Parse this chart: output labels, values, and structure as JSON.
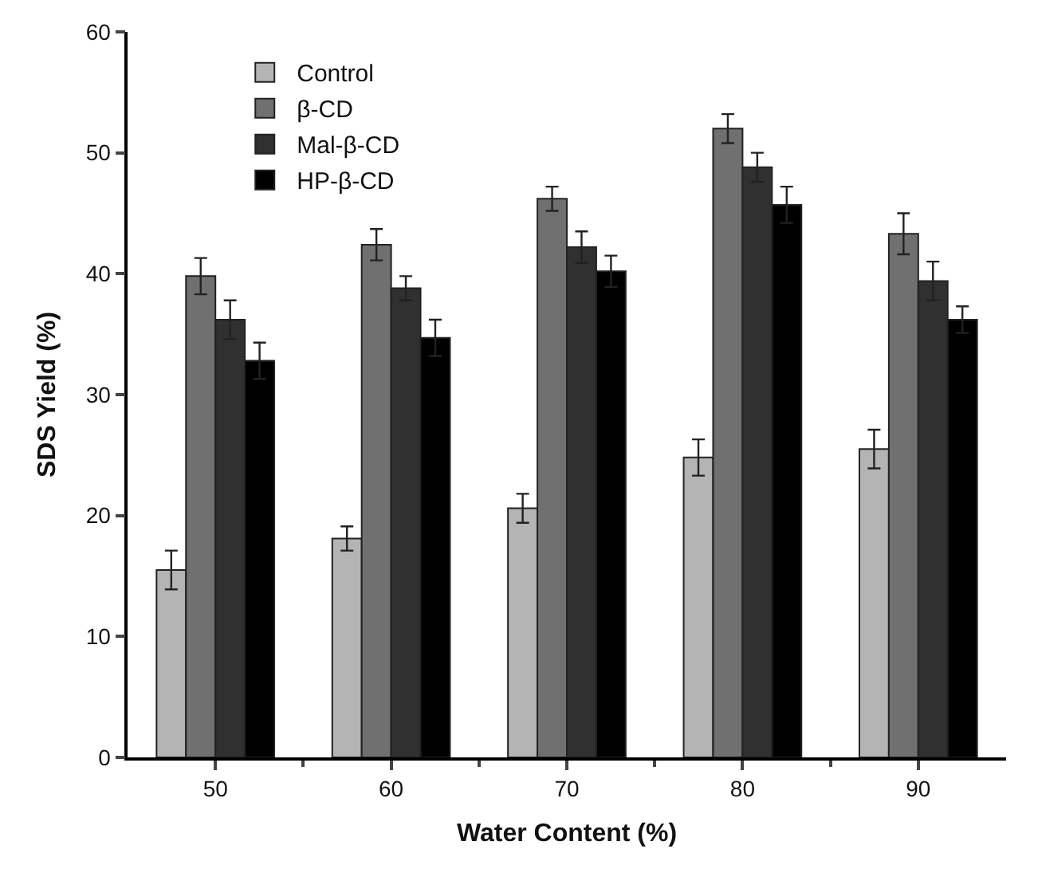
{
  "chart_data": {
    "type": "bar",
    "xlabel": "Water Content (%)",
    "ylabel": "SDS Yield (%)",
    "categories": [
      "50",
      "60",
      "70",
      "80",
      "90"
    ],
    "series": [
      {
        "name": "Control",
        "color": "#b4b4b4",
        "values": [
          15.5,
          18.1,
          20.6,
          24.8,
          25.5
        ],
        "errors": [
          1.6,
          1.0,
          1.2,
          1.5,
          1.6
        ]
      },
      {
        "name": "β-CD",
        "color": "#707070",
        "values": [
          39.8,
          42.4,
          46.2,
          52.0,
          43.3
        ],
        "errors": [
          1.5,
          1.3,
          1.0,
          1.2,
          1.7
        ]
      },
      {
        "name": "Mal-β-CD",
        "color": "#303030",
        "values": [
          36.2,
          38.8,
          42.2,
          48.8,
          39.4
        ],
        "errors": [
          1.6,
          1.0,
          1.3,
          1.2,
          1.6
        ]
      },
      {
        "name": "HP-β-CD",
        "color": "#000000",
        "values": [
          32.8,
          34.7,
          40.2,
          45.7,
          36.2
        ],
        "errors": [
          1.5,
          1.5,
          1.3,
          1.5,
          1.1
        ]
      }
    ],
    "ylim": [
      0,
      60
    ],
    "yticks": [
      0,
      10,
      20,
      30,
      40,
      50,
      60
    ],
    "legend": "top left"
  }
}
